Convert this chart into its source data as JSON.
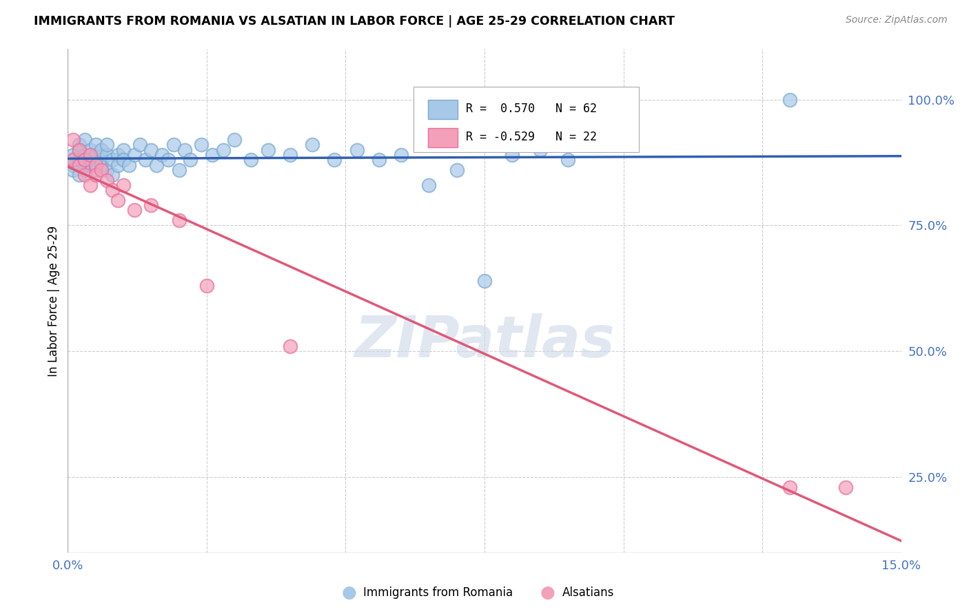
{
  "title": "IMMIGRANTS FROM ROMANIA VS ALSATIAN IN LABOR FORCE | AGE 25-29 CORRELATION CHART",
  "source": "Source: ZipAtlas.com",
  "ylabel": "In Labor Force | Age 25-29",
  "ytick_labels": [
    "25.0%",
    "50.0%",
    "75.0%",
    "100.0%"
  ],
  "ytick_values": [
    0.25,
    0.5,
    0.75,
    1.0
  ],
  "xmin": 0.0,
  "xmax": 0.15,
  "ymin": 0.1,
  "ymax": 1.1,
  "legend_r1": "R =  0.570   N = 62",
  "legend_r2": "R = -0.529   N = 22",
  "romania_color": "#a8c8e8",
  "alsatian_color": "#f4a0b8",
  "romania_edge_color": "#7aaad0",
  "alsatian_edge_color": "#e870a0",
  "romania_line_color": "#3060b0",
  "alsatian_line_color": "#e05878",
  "romania_scatter_x": [
    0.001,
    0.001,
    0.001,
    0.001,
    0.002,
    0.002,
    0.002,
    0.002,
    0.003,
    0.003,
    0.003,
    0.003,
    0.004,
    0.004,
    0.004,
    0.005,
    0.005,
    0.005,
    0.006,
    0.006,
    0.006,
    0.007,
    0.007,
    0.007,
    0.008,
    0.008,
    0.009,
    0.009,
    0.01,
    0.01,
    0.011,
    0.012,
    0.013,
    0.014,
    0.015,
    0.016,
    0.017,
    0.018,
    0.019,
    0.02,
    0.021,
    0.022,
    0.024,
    0.026,
    0.028,
    0.03,
    0.033,
    0.036,
    0.04,
    0.044,
    0.048,
    0.052,
    0.056,
    0.06,
    0.065,
    0.07,
    0.075,
    0.08,
    0.085,
    0.09,
    0.095,
    0.13
  ],
  "romania_scatter_y": [
    0.88,
    0.87,
    0.89,
    0.86,
    0.9,
    0.88,
    0.85,
    0.91,
    0.89,
    0.87,
    0.92,
    0.86,
    0.88,
    0.9,
    0.87,
    0.89,
    0.91,
    0.86,
    0.88,
    0.9,
    0.87,
    0.89,
    0.91,
    0.86,
    0.88,
    0.85,
    0.89,
    0.87,
    0.9,
    0.88,
    0.87,
    0.89,
    0.91,
    0.88,
    0.9,
    0.87,
    0.89,
    0.88,
    0.91,
    0.86,
    0.9,
    0.88,
    0.91,
    0.89,
    0.9,
    0.92,
    0.88,
    0.9,
    0.89,
    0.91,
    0.88,
    0.9,
    0.88,
    0.89,
    0.83,
    0.86,
    0.64,
    0.89,
    0.9,
    0.88,
    0.91,
    1.0
  ],
  "alsatian_scatter_x": [
    0.001,
    0.001,
    0.002,
    0.002,
    0.003,
    0.003,
    0.004,
    0.004,
    0.005,
    0.005,
    0.006,
    0.007,
    0.008,
    0.009,
    0.01,
    0.012,
    0.015,
    0.02,
    0.025,
    0.04,
    0.13,
    0.14
  ],
  "alsatian_scatter_y": [
    0.92,
    0.88,
    0.9,
    0.87,
    0.88,
    0.85,
    0.89,
    0.83,
    0.87,
    0.85,
    0.86,
    0.84,
    0.82,
    0.8,
    0.83,
    0.78,
    0.79,
    0.76,
    0.63,
    0.51,
    0.23,
    0.23
  ],
  "background_color": "#ffffff",
  "grid_color": "#cccccc",
  "watermark_text": "ZIPatlas",
  "watermark_color": "#ccd8e8"
}
